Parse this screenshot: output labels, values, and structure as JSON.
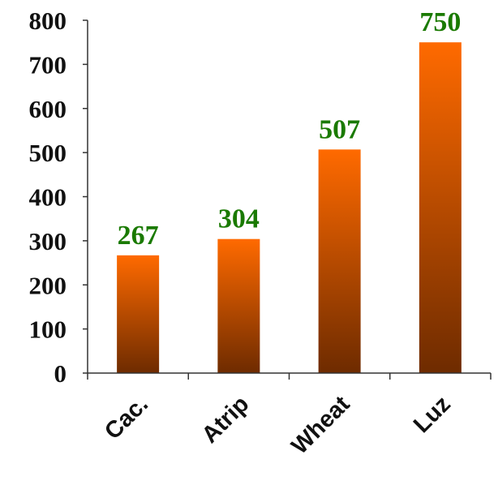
{
  "chart_data": {
    "type": "bar",
    "categories": [
      "Cac.",
      "Atrip",
      "Wheat",
      "Luz"
    ],
    "values": [
      267,
      304,
      507,
      750
    ],
    "data_labels": [
      "267",
      "304",
      "507",
      "750"
    ],
    "title": "",
    "xlabel": "",
    "ylabel": "",
    "ylim": [
      0,
      800
    ],
    "yticks": [
      0,
      100,
      200,
      300,
      400,
      500,
      600,
      700,
      800
    ],
    "ytick_labels": [
      "0",
      "100",
      "200",
      "300",
      "400",
      "500",
      "600",
      "700",
      "800"
    ],
    "grid": false,
    "legend": "none",
    "colors": {
      "bar_top": "#ff6a00",
      "bar_bottom": "#6e2b00",
      "data_label": "#1a7a00",
      "axis": "#333333"
    }
  }
}
